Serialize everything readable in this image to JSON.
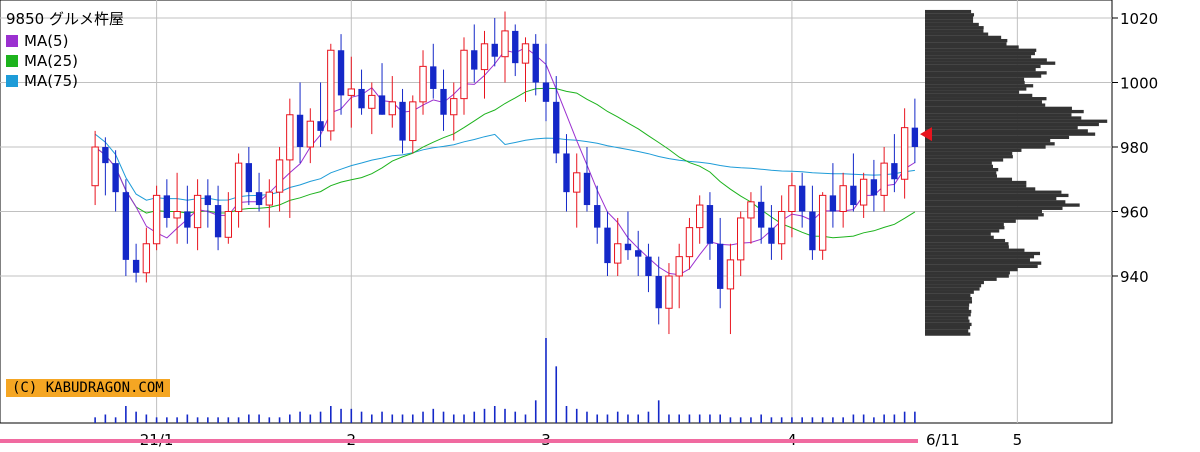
{
  "colors": {
    "up": "#e8141e",
    "down": "#1428c8",
    "ma5": "#9b30d0",
    "ma25": "#1db31d",
    "ma75": "#1e9cd8",
    "profile": "#333333",
    "grid": "#c0c0c0",
    "timeline": "#f06aa0",
    "copyright_bg": "#f5a623",
    "price_marker": "#e8141e"
  },
  "legend": {
    "title": "9850 グルメ杵屋",
    "ma5": "MA(5)",
    "ma25": "MA(25)",
    "ma75": "MA(75)"
  },
  "copyright": "(C) KABUDRAGON.COM",
  "end_date": "6/11",
  "chart_data": {
    "type": "candlestick",
    "y_range": [
      915,
      1025
    ],
    "y_ticks": [
      940,
      960,
      980,
      1000,
      1020
    ],
    "x_labels": [
      {
        "label": "21/1",
        "index": 6
      },
      {
        "label": "2",
        "index": 25
      },
      {
        "label": "3",
        "index": 44
      },
      {
        "label": "4",
        "index": 68
      },
      {
        "label": "5",
        "index": 90
      },
      {
        "label": "6",
        "index": 109
      }
    ],
    "grid": true,
    "ohlc": [
      [
        968,
        985,
        962,
        980
      ],
      [
        980,
        983,
        965,
        975
      ],
      [
        975,
        979,
        960,
        966
      ],
      [
        966,
        970,
        940,
        945
      ],
      [
        945,
        950,
        938,
        941
      ],
      [
        941,
        955,
        938,
        950
      ],
      [
        950,
        968,
        948,
        965
      ],
      [
        965,
        970,
        955,
        958
      ],
      [
        958,
        972,
        950,
        960
      ],
      [
        960,
        968,
        950,
        955
      ],
      [
        955,
        970,
        948,
        965
      ],
      [
        965,
        970,
        955,
        962
      ],
      [
        962,
        968,
        948,
        952
      ],
      [
        952,
        966,
        950,
        960
      ],
      [
        960,
        978,
        955,
        975
      ],
      [
        975,
        980,
        962,
        966
      ],
      [
        966,
        972,
        960,
        962
      ],
      [
        962,
        970,
        955,
        966
      ],
      [
        966,
        980,
        960,
        976
      ],
      [
        976,
        995,
        958,
        990
      ],
      [
        990,
        1000,
        975,
        980
      ],
      [
        980,
        992,
        975,
        988
      ],
      [
        988,
        1000,
        980,
        985
      ],
      [
        985,
        1012,
        982,
        1010
      ],
      [
        1010,
        1015,
        990,
        996
      ],
      [
        996,
        1008,
        986,
        998
      ],
      [
        998,
        1004,
        990,
        992
      ],
      [
        992,
        1000,
        984,
        996
      ],
      [
        996,
        1006,
        990,
        990
      ],
      [
        990,
        1002,
        986,
        994
      ],
      [
        994,
        998,
        978,
        982
      ],
      [
        982,
        996,
        978,
        994
      ],
      [
        994,
        1010,
        990,
        1005
      ],
      [
        1005,
        1012,
        995,
        998
      ],
      [
        998,
        1004,
        985,
        990
      ],
      [
        990,
        1000,
        982,
        995
      ],
      [
        995,
        1014,
        990,
        1010
      ],
      [
        1010,
        1018,
        1000,
        1004
      ],
      [
        1004,
        1016,
        995,
        1012
      ],
      [
        1012,
        1020,
        1005,
        1008
      ],
      [
        1008,
        1022,
        1000,
        1016
      ],
      [
        1016,
        1018,
        1002,
        1006
      ],
      [
        1006,
        1014,
        994,
        1012
      ],
      [
        1012,
        1015,
        996,
        1000
      ],
      [
        1000,
        1012,
        988,
        994
      ],
      [
        994,
        1002,
        975,
        978
      ],
      [
        978,
        984,
        960,
        966
      ],
      [
        966,
        978,
        955,
        972
      ],
      [
        972,
        980,
        960,
        962
      ],
      [
        962,
        968,
        950,
        955
      ],
      [
        955,
        960,
        940,
        944
      ],
      [
        944,
        958,
        940,
        950
      ],
      [
        950,
        960,
        945,
        948
      ],
      [
        948,
        954,
        940,
        946
      ],
      [
        946,
        950,
        935,
        940
      ],
      [
        940,
        946,
        925,
        930
      ],
      [
        930,
        944,
        922,
        940
      ],
      [
        940,
        950,
        930,
        946
      ],
      [
        946,
        958,
        942,
        955
      ],
      [
        955,
        965,
        950,
        962
      ],
      [
        962,
        966,
        945,
        950
      ],
      [
        950,
        958,
        930,
        936
      ],
      [
        936,
        950,
        922,
        945
      ],
      [
        945,
        960,
        940,
        958
      ],
      [
        958,
        966,
        950,
        963
      ],
      [
        963,
        968,
        950,
        955
      ],
      [
        955,
        962,
        945,
        950
      ],
      [
        950,
        965,
        945,
        960
      ],
      [
        960,
        972,
        952,
        968
      ],
      [
        968,
        972,
        955,
        960
      ],
      [
        960,
        968,
        945,
        948
      ],
      [
        948,
        966,
        945,
        965
      ],
      [
        965,
        975,
        955,
        960
      ],
      [
        960,
        972,
        955,
        968
      ],
      [
        968,
        978,
        960,
        962
      ],
      [
        962,
        972,
        958,
        970
      ],
      [
        970,
        976,
        960,
        965
      ],
      [
        965,
        980,
        960,
        975
      ],
      [
        975,
        984,
        966,
        970
      ],
      [
        970,
        992,
        964,
        986
      ],
      [
        986,
        995,
        975,
        980
      ]
    ],
    "volume": [
      2,
      3,
      2,
      6,
      4,
      3,
      2,
      2,
      2,
      3,
      2,
      2,
      2,
      2,
      2,
      3,
      3,
      2,
      2,
      3,
      4,
      3,
      4,
      6,
      5,
      5,
      4,
      3,
      4,
      3,
      3,
      3,
      4,
      5,
      4,
      3,
      3,
      4,
      5,
      6,
      5,
      4,
      3,
      8,
      30,
      20,
      6,
      5,
      4,
      3,
      3,
      4,
      3,
      3,
      4,
      8,
      3,
      3,
      3,
      3,
      3,
      3,
      2,
      2,
      2,
      3,
      2,
      2,
      2,
      2,
      2,
      2,
      2,
      2,
      3,
      3,
      2,
      3,
      3,
      4,
      4
    ]
  }
}
